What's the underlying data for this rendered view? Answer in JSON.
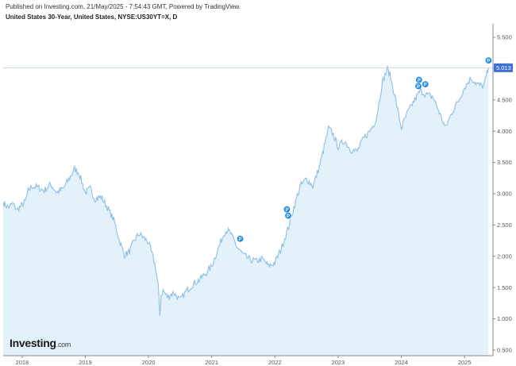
{
  "header": {
    "published": "Published on Investing.com, 21/May/2025 - 7:54:43 GMT, Powered by TradingView.",
    "title": "United States 30-Year, United States, NYSE:US30YT=X, D"
  },
  "logo": {
    "brand": "Investing",
    "suffix": ".com"
  },
  "colors": {
    "line": "#8ebfe3",
    "fill": "#e3f1fb",
    "marker": "#1e88e5",
    "price_box": "#3f6fd8",
    "grid_line": "#c6d9ea"
  },
  "chart_data": {
    "type": "area",
    "x_tick_labels": [
      "2018",
      "2019",
      "2020",
      "2021",
      "2022",
      "2023",
      "2024",
      "2025"
    ],
    "y_tick_labels": [
      "0.500",
      "1.000",
      "1.500",
      "2.000",
      "2.500",
      "3.000",
      "3.500",
      "4.000",
      "4.500",
      "5.000",
      "5.500"
    ],
    "ylim": [
      0.5,
      5.5
    ],
    "xlim": [
      2017.7,
      2025.45
    ],
    "last_value_label": "5.013",
    "last_value": 5.013,
    "marker_label": "P",
    "markers": [
      {
        "x": 2021.45,
        "y": 2.28
      },
      {
        "x": 2022.19,
        "y": 2.75
      },
      {
        "x": 2022.21,
        "y": 2.65
      },
      {
        "x": 2024.27,
        "y": 4.72
      },
      {
        "x": 2024.28,
        "y": 4.82
      },
      {
        "x": 2024.38,
        "y": 4.75
      },
      {
        "x": 2025.38,
        "y": 5.13
      }
    ],
    "series": [
      {
        "x": [
          2017.7,
          2017.78,
          2017.85,
          2017.92,
          2018.0,
          2018.05,
          2018.1,
          2018.15,
          2018.25,
          2018.35,
          2018.45,
          2018.55,
          2018.65,
          2018.75,
          2018.83,
          2018.9,
          2019.0,
          2019.08,
          2019.15,
          2019.25,
          2019.35,
          2019.45,
          2019.55,
          2019.62,
          2019.7,
          2019.78,
          2019.85,
          2019.92,
          2020.0,
          2020.1,
          2020.15,
          2020.18,
          2020.2,
          2020.23,
          2020.3,
          2020.4,
          2020.5,
          2020.6,
          2020.7,
          2020.8,
          2020.9,
          2021.0,
          2021.1,
          2021.2,
          2021.25,
          2021.3,
          2021.4,
          2021.5,
          2021.6,
          2021.7,
          2021.8,
          2021.9,
          2022.0,
          2022.1,
          2022.2,
          2022.3,
          2022.4,
          2022.5,
          2022.6,
          2022.7,
          2022.78,
          2022.85,
          2022.92,
          2023.0,
          2023.1,
          2023.2,
          2023.3,
          2023.4,
          2023.5,
          2023.6,
          2023.7,
          2023.78,
          2023.82,
          2023.9,
          2024.0,
          2024.1,
          2024.2,
          2024.3,
          2024.4,
          2024.5,
          2024.6,
          2024.7,
          2024.8,
          2024.9,
          2025.0,
          2025.1,
          2025.2,
          2025.3,
          2025.38
        ],
        "values": [
          2.86,
          2.78,
          2.84,
          2.74,
          2.82,
          2.88,
          3.05,
          3.12,
          3.1,
          3.05,
          3.15,
          3.02,
          3.08,
          3.25,
          3.4,
          3.33,
          3.02,
          3.08,
          2.92,
          2.95,
          2.78,
          2.58,
          2.22,
          2.02,
          2.08,
          2.26,
          2.36,
          2.3,
          2.22,
          1.88,
          1.55,
          1.05,
          1.38,
          1.45,
          1.35,
          1.42,
          1.3,
          1.45,
          1.55,
          1.62,
          1.72,
          1.84,
          2.12,
          2.38,
          2.42,
          2.36,
          2.15,
          2.02,
          1.95,
          1.92,
          1.96,
          1.84,
          1.9,
          2.12,
          2.42,
          2.78,
          3.12,
          3.24,
          3.12,
          3.42,
          3.75,
          4.05,
          3.95,
          3.75,
          3.85,
          3.7,
          3.68,
          3.88,
          4.0,
          4.18,
          4.78,
          5.0,
          4.9,
          4.55,
          4.05,
          4.3,
          4.48,
          4.65,
          4.58,
          4.55,
          4.3,
          4.05,
          4.3,
          4.48,
          4.7,
          4.85,
          4.75,
          4.72,
          5.013
        ]
      }
    ]
  }
}
